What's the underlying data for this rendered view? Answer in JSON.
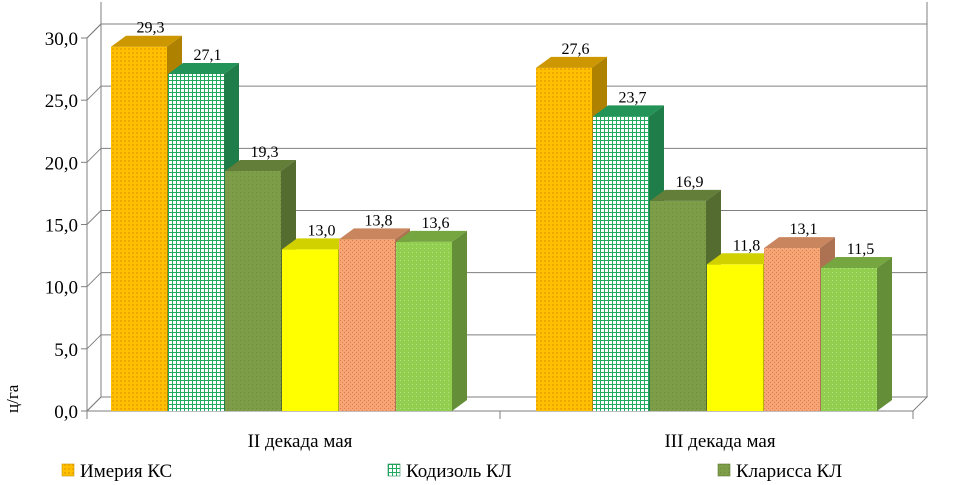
{
  "chart_data": {
    "type": "bar",
    "ylabel": "ц/га",
    "ylim": [
      0,
      30
    ],
    "yticks": [
      "0,0",
      "5,0",
      "10,0",
      "15,0",
      "20,0",
      "25,0",
      "30,0"
    ],
    "categories": [
      "II декада мая",
      "III декада мая"
    ],
    "grid": true,
    "legend_position": "bottom",
    "series": [
      {
        "name": "Имерия КС",
        "values": [
          29.3,
          27.6
        ],
        "labels": [
          "29,3",
          "27,6"
        ],
        "color": "#F9B800"
      },
      {
        "name": "Кодизоль КЛ",
        "values": [
          27.1,
          23.7
        ],
        "labels": [
          "27,1",
          "23,7"
        ],
        "color": "#2CB36A"
      },
      {
        "name": "Кларисса КЛ",
        "values": [
          19.3,
          16.9
        ],
        "labels": [
          "19,3",
          "16,9"
        ],
        "color": "#789A44"
      },
      {
        "name": "",
        "values": [
          13.0,
          11.8
        ],
        "labels": [
          "13,0",
          "11,8"
        ],
        "color": "#FFFF00"
      },
      {
        "name": "",
        "values": [
          13.8,
          13.1
        ],
        "labels": [
          "13,8",
          "13,1"
        ],
        "color": "#F5A373"
      },
      {
        "name": "",
        "values": [
          13.6,
          11.5
        ],
        "labels": [
          "13,6",
          "11,5"
        ],
        "color": "#8FCB4E"
      }
    ]
  }
}
